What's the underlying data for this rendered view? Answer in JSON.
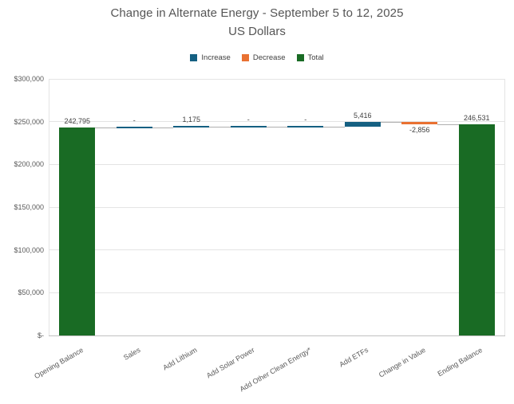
{
  "chart_data": {
    "type": "waterfall",
    "title": "Change in Alternate Energy - September 5 to 12, 2025",
    "subtitle": "US Dollars",
    "categories": [
      "Opening Balance",
      "Sales",
      "Add Lithium",
      "Add Solar Power",
      "Add Other Clean Energy*",
      "Add ETFs",
      "Change in Value",
      "Ending Balance"
    ],
    "values": [
      242795,
      0,
      1175,
      0,
      0,
      5416,
      -2856,
      246531
    ],
    "labels": [
      "242,795",
      "-",
      "1,175",
      "-",
      "-",
      "5,416",
      "-2,856",
      "246,531"
    ],
    "bar_types": [
      "total",
      "increase",
      "increase",
      "increase",
      "increase",
      "increase",
      "decrease",
      "total"
    ],
    "colors": {
      "increase": "#156082",
      "decrease": "#E97132",
      "total": "#196B24"
    },
    "legend": [
      {
        "label": "Increase",
        "key": "increase",
        "color": "#156082"
      },
      {
        "label": "Decrease",
        "key": "decrease",
        "color": "#E97132"
      },
      {
        "label": "Total",
        "key": "total",
        "color": "#196B24"
      }
    ],
    "legend_position": "top",
    "grid": true,
    "y_axis": {
      "min": 0,
      "max": 300000,
      "step": 50000,
      "ticks_top_to_bottom": [
        "$300,000",
        "$250,000",
        "$200,000",
        "$150,000",
        "$100,000",
        "$50,000",
        "$-"
      ]
    },
    "xlabel": "",
    "ylabel": ""
  }
}
